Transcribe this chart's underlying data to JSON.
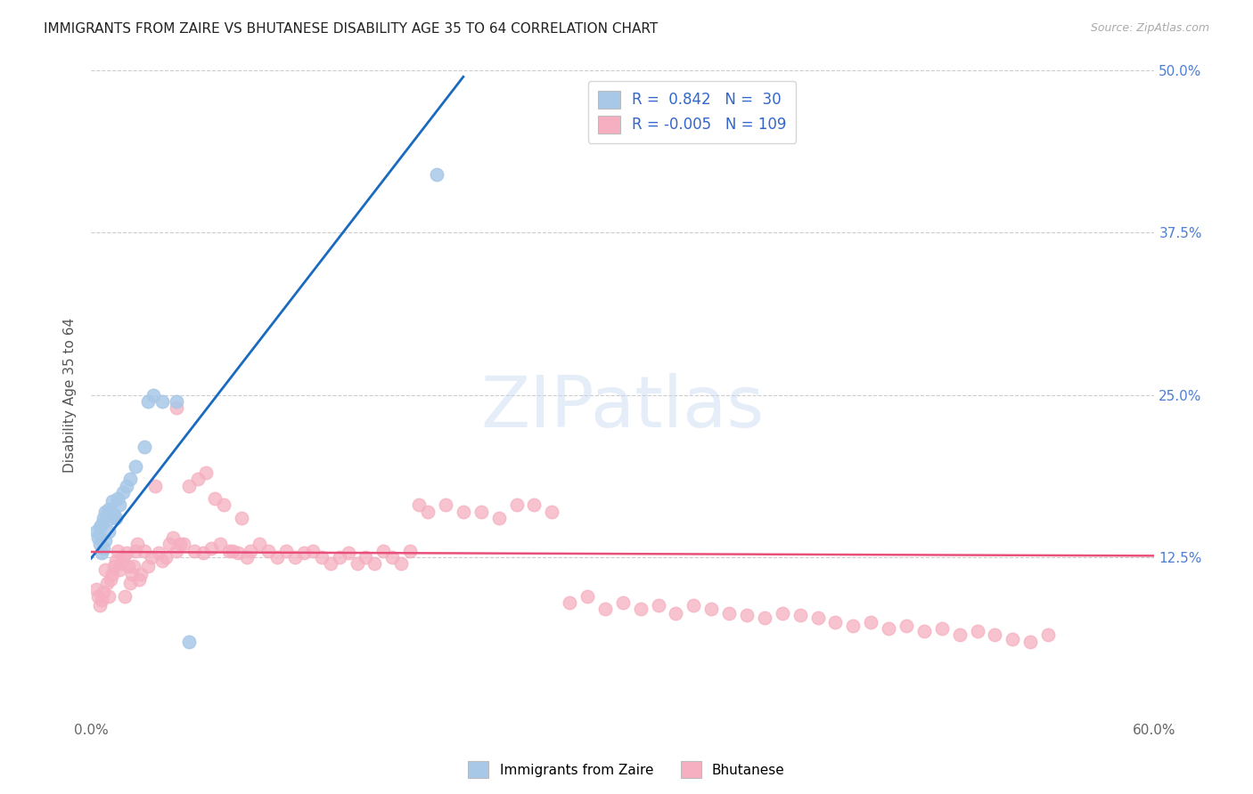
{
  "title": "IMMIGRANTS FROM ZAIRE VS BHUTANESE DISABILITY AGE 35 TO 64 CORRELATION CHART",
  "source": "Source: ZipAtlas.com",
  "ylabel": "Disability Age 35 to 64",
  "xlim": [
    0.0,
    0.6
  ],
  "ylim": [
    0.0,
    0.5
  ],
  "xticks": [
    0.0,
    0.1,
    0.2,
    0.3,
    0.4,
    0.5,
    0.6
  ],
  "xticklabels": [
    "0.0%",
    "",
    "",
    "",
    "",
    "",
    "60.0%"
  ],
  "yticks": [
    0.0,
    0.125,
    0.25,
    0.375,
    0.5
  ],
  "right_yticklabels": [
    "",
    "12.5%",
    "25.0%",
    "37.5%",
    "50.0%"
  ],
  "grid_color": "#cccccc",
  "background_color": "#ffffff",
  "zaire_color": "#a8c8e8",
  "bhutan_color": "#f5afc0",
  "zaire_line_color": "#1a6abf",
  "bhutan_line_color": "#e8507a",
  "r_zaire": 0.842,
  "n_zaire": 30,
  "r_bhutan": -0.005,
  "n_bhutan": 109,
  "legend_label_zaire": "Immigrants from Zaire",
  "legend_label_bhutan": "Bhutanese",
  "watermark": "ZIPatlas",
  "zaire_x": [
    0.003,
    0.004,
    0.005,
    0.005,
    0.006,
    0.006,
    0.007,
    0.007,
    0.008,
    0.008,
    0.009,
    0.01,
    0.01,
    0.011,
    0.012,
    0.013,
    0.014,
    0.015,
    0.016,
    0.018,
    0.02,
    0.022,
    0.025,
    0.03,
    0.032,
    0.035,
    0.04,
    0.048,
    0.195,
    0.055
  ],
  "zaire_y": [
    0.145,
    0.14,
    0.148,
    0.135,
    0.15,
    0.128,
    0.155,
    0.132,
    0.16,
    0.138,
    0.158,
    0.162,
    0.145,
    0.155,
    0.168,
    0.158,
    0.155,
    0.17,
    0.165,
    0.175,
    0.18,
    0.185,
    0.195,
    0.21,
    0.245,
    0.25,
    0.245,
    0.245,
    0.42,
    0.06
  ],
  "bhutan_x": [
    0.003,
    0.004,
    0.005,
    0.006,
    0.007,
    0.008,
    0.009,
    0.01,
    0.011,
    0.012,
    0.013,
    0.014,
    0.015,
    0.016,
    0.017,
    0.018,
    0.019,
    0.02,
    0.021,
    0.022,
    0.023,
    0.024,
    0.025,
    0.026,
    0.027,
    0.028,
    0.03,
    0.032,
    0.034,
    0.036,
    0.038,
    0.04,
    0.042,
    0.044,
    0.046,
    0.048,
    0.05,
    0.055,
    0.06,
    0.065,
    0.07,
    0.075,
    0.08,
    0.085,
    0.09,
    0.095,
    0.1,
    0.105,
    0.11,
    0.115,
    0.12,
    0.125,
    0.13,
    0.135,
    0.14,
    0.145,
    0.15,
    0.155,
    0.16,
    0.165,
    0.17,
    0.175,
    0.18,
    0.185,
    0.19,
    0.2,
    0.21,
    0.22,
    0.23,
    0.24,
    0.25,
    0.26,
    0.27,
    0.28,
    0.29,
    0.3,
    0.31,
    0.32,
    0.33,
    0.34,
    0.35,
    0.36,
    0.37,
    0.38,
    0.39,
    0.4,
    0.41,
    0.42,
    0.43,
    0.44,
    0.45,
    0.46,
    0.47,
    0.48,
    0.49,
    0.5,
    0.51,
    0.52,
    0.53,
    0.54,
    0.048,
    0.052,
    0.058,
    0.063,
    0.068,
    0.073,
    0.078,
    0.083,
    0.088
  ],
  "bhutan_y": [
    0.1,
    0.095,
    0.088,
    0.092,
    0.098,
    0.115,
    0.105,
    0.095,
    0.108,
    0.112,
    0.118,
    0.122,
    0.13,
    0.115,
    0.12,
    0.125,
    0.095,
    0.128,
    0.118,
    0.105,
    0.112,
    0.118,
    0.13,
    0.135,
    0.108,
    0.112,
    0.13,
    0.118,
    0.125,
    0.18,
    0.128,
    0.122,
    0.125,
    0.135,
    0.14,
    0.13,
    0.135,
    0.18,
    0.185,
    0.19,
    0.17,
    0.165,
    0.13,
    0.155,
    0.13,
    0.135,
    0.13,
    0.125,
    0.13,
    0.125,
    0.128,
    0.13,
    0.125,
    0.12,
    0.125,
    0.128,
    0.12,
    0.125,
    0.12,
    0.13,
    0.125,
    0.12,
    0.13,
    0.165,
    0.16,
    0.165,
    0.16,
    0.16,
    0.155,
    0.165,
    0.165,
    0.16,
    0.09,
    0.095,
    0.085,
    0.09,
    0.085,
    0.088,
    0.082,
    0.088,
    0.085,
    0.082,
    0.08,
    0.078,
    0.082,
    0.08,
    0.078,
    0.075,
    0.072,
    0.075,
    0.07,
    0.072,
    0.068,
    0.07,
    0.065,
    0.068,
    0.065,
    0.062,
    0.06,
    0.065,
    0.24,
    0.135,
    0.13,
    0.128,
    0.132,
    0.135,
    0.13,
    0.128,
    0.125
  ],
  "zaire_line_x": [
    0.0,
    0.21
  ],
  "zaire_line_y": [
    0.124,
    0.495
  ],
  "bhutan_line_x": [
    0.0,
    0.6
  ],
  "bhutan_line_y": [
    0.129,
    0.126
  ]
}
